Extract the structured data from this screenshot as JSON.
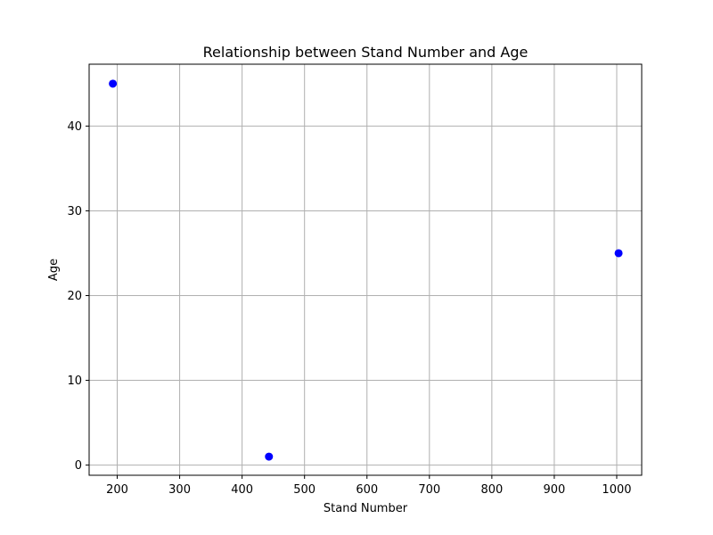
{
  "chart_data": {
    "type": "scatter",
    "title": "Relationship between Stand Number and Age",
    "xlabel": "Stand Number",
    "ylabel": "Age",
    "xlim": [
      155,
      1040
    ],
    "ylim": [
      -1.2,
      47.3
    ],
    "xticks": [
      200,
      300,
      400,
      500,
      600,
      700,
      800,
      900,
      1000
    ],
    "yticks": [
      0,
      10,
      20,
      30,
      40
    ],
    "grid": true,
    "legend": "none",
    "marker_color": "#0000ff",
    "series": [
      {
        "points": [
          {
            "x": 193,
            "y": 45
          },
          {
            "x": 443,
            "y": 1
          },
          {
            "x": 1003,
            "y": 25
          }
        ]
      }
    ]
  }
}
